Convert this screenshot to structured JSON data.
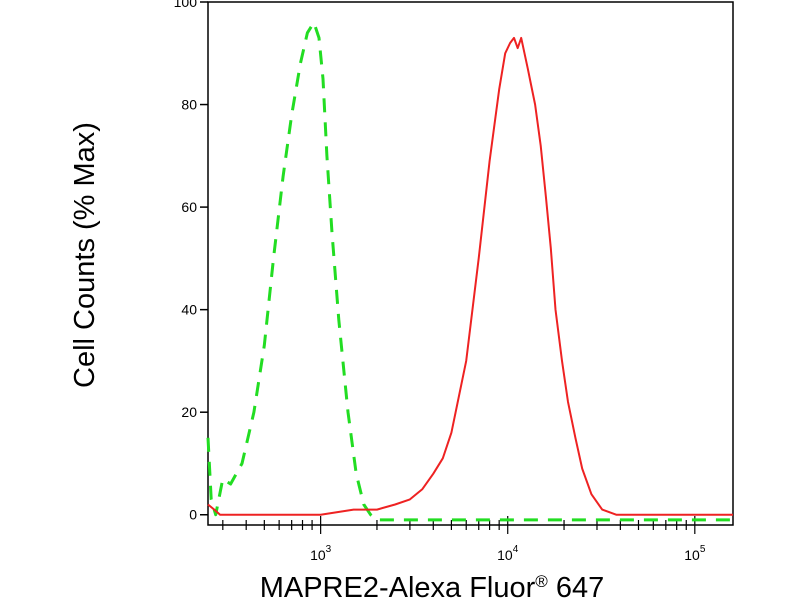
{
  "chart_data": {
    "type": "line",
    "title": "",
    "xlabel": {
      "prefix": "MAPRE2-Alexa Fluor",
      "superscript": "®",
      "suffix": " 647"
    },
    "ylabel": "Cell Counts (% Max)",
    "xscale": "log",
    "xlim": [
      250,
      160000
    ],
    "ylim": [
      -2,
      100
    ],
    "grid": false,
    "legend": "none",
    "y_ticks": [
      {
        "value": 0,
        "label": "0"
      },
      {
        "value": 20,
        "label": "20"
      },
      {
        "value": 40,
        "label": "40"
      },
      {
        "value": 60,
        "label": "60"
      },
      {
        "value": 80,
        "label": "80"
      },
      {
        "value": 100,
        "label": "100"
      }
    ],
    "x_ticks": [
      {
        "value": 1000,
        "base": "10",
        "exp": "3"
      },
      {
        "value": 10000,
        "base": "10",
        "exp": "4"
      },
      {
        "value": 100000,
        "base": "10",
        "exp": "5"
      }
    ],
    "series": [
      {
        "color": "#22dd22",
        "style": "dashed",
        "x": [
          250,
          260,
          275,
          300,
          330,
          380,
          440,
          500,
          560,
          630,
          700,
          780,
          850,
          920,
          980,
          1030,
          1080,
          1150,
          1250,
          1400,
          1550,
          1700,
          1850,
          2000,
          2200,
          2500,
          3000,
          5000,
          10000,
          50000,
          160000
        ],
        "y": [
          15,
          3,
          0,
          7,
          6,
          10,
          20,
          33,
          50,
          66,
          78,
          88,
          94,
          96,
          93,
          85,
          70,
          55,
          38,
          20,
          8,
          2,
          0,
          -1,
          -1,
          -1,
          -1,
          -1,
          -1,
          -1,
          -1
        ]
      },
      {
        "color": "#ee2222",
        "style": "solid",
        "x": [
          250,
          270,
          290,
          320,
          400,
          600,
          800,
          1000,
          1500,
          2000,
          2500,
          3000,
          3500,
          4000,
          4500,
          5000,
          6000,
          7000,
          8000,
          9000,
          9700,
          10300,
          10800,
          11300,
          11800,
          12300,
          12800,
          13300,
          14000,
          15000,
          16000,
          17000,
          18000,
          19500,
          21000,
          23000,
          25000,
          28000,
          32000,
          38000,
          45000,
          60000,
          160000
        ],
        "y": [
          2,
          1,
          0,
          0,
          0,
          0,
          0,
          0,
          1,
          1,
          2,
          3,
          5,
          8,
          11,
          16,
          30,
          50,
          69,
          83,
          90,
          92,
          93,
          91,
          93,
          90,
          87,
          84,
          80,
          72,
          62,
          52,
          40,
          30,
          22,
          15,
          9,
          4,
          1,
          0,
          0,
          0,
          0
        ]
      }
    ]
  }
}
